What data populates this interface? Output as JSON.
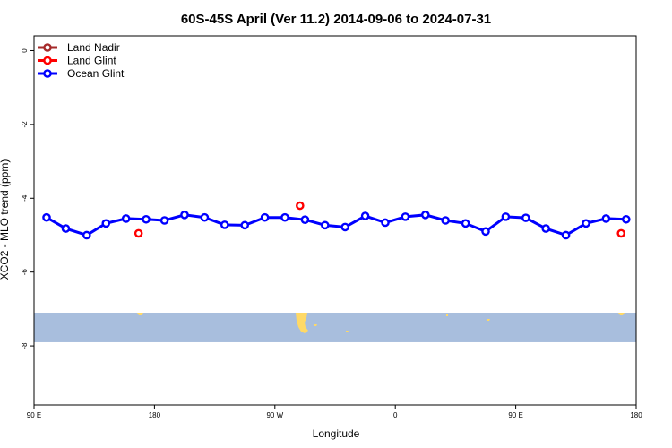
{
  "chart_data": {
    "type": "line",
    "title": "60S-45S April (Ver 11.2)   2014-09-06 to 2024-07-31",
    "xlabel": "Longitude",
    "ylabel": "XCO2 - MLO trend (ppm)",
    "xlim": [
      0,
      360
    ],
    "ylim": [
      -9.6,
      0.4
    ],
    "x_ticks": [
      0,
      72,
      144,
      216,
      288,
      360
    ],
    "x_tick_labels": [
      "90 E",
      "180",
      "90 W",
      "0",
      "90 E",
      "180"
    ],
    "y_ticks": [
      0,
      -2,
      -4,
      -6,
      -8
    ],
    "y_tick_labels": [
      "0",
      "-2",
      "-4",
      "-6",
      "-8"
    ],
    "grid": false,
    "legend_position": "top-left",
    "series": [
      {
        "name": "Land Nadir",
        "color": "#a52a2a",
        "x": [],
        "y": []
      },
      {
        "name": "Land Glint",
        "color": "#ff0000",
        "style": "points",
        "x": [
          62.5,
          159,
          351
        ],
        "y": [
          -4.95,
          -4.2,
          -4.95
        ]
      },
      {
        "name": "Ocean Glint",
        "color": "#0000ff",
        "style": "line+points",
        "x": [
          7.5,
          19,
          31.5,
          43,
          55,
          67,
          78,
          90,
          102,
          114,
          126,
          138,
          150,
          162,
          174,
          186,
          198,
          210,
          222,
          234,
          246,
          258,
          270,
          282,
          294,
          306,
          318,
          330,
          342,
          354
        ],
        "y": [
          -4.52,
          -4.82,
          -5.0,
          -4.68,
          -4.55,
          -4.57,
          -4.6,
          -4.45,
          -4.52,
          -4.72,
          -4.73,
          -4.52,
          -4.52,
          -4.58,
          -4.73,
          -4.78,
          -4.48,
          -4.66,
          -4.5,
          -4.45,
          -4.6,
          -4.68,
          -4.9,
          -4.5,
          -4.53,
          -4.82,
          -5.0,
          -4.68,
          -4.55,
          -4.57
        ]
      }
    ],
    "map_strip": {
      "y_range": [
        -7.9,
        -7.1
      ],
      "ocean_color": "#a8bedd",
      "land_color": "#ffd966"
    }
  }
}
